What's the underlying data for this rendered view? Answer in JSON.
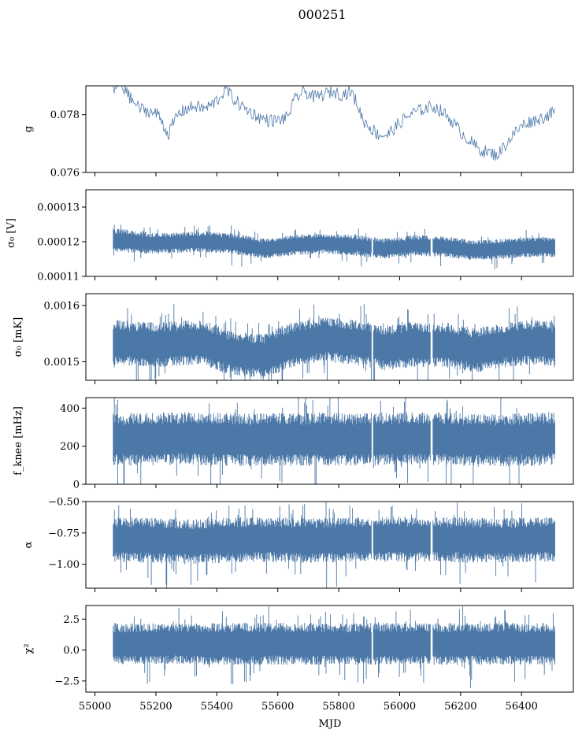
{
  "figure": {
    "suptitle": "000251",
    "xlabel": "MJD",
    "line_color": "#4c78a8",
    "x_ticks": [
      "55000",
      "55200",
      "55400",
      "55600",
      "55800",
      "56000",
      "56200",
      "56400"
    ]
  },
  "chart_data": [
    {
      "type": "line",
      "ylabel": "g",
      "xlim": [
        54970,
        56570
      ],
      "ylim": [
        0.076,
        0.079
      ],
      "y_ticks": [
        "0.076",
        "0.078"
      ],
      "y_tick_values": [
        0.076,
        0.078
      ],
      "series": [
        {
          "x": [
            55060,
            55090,
            55120,
            55150,
            55180,
            55210,
            55240,
            55270,
            55300,
            55330,
            55360,
            55390,
            55410,
            55430,
            55450,
            55480,
            55510,
            55540,
            55570,
            55600,
            55630,
            55660,
            55690,
            55720,
            55750,
            55780,
            55810,
            55840,
            55860,
            55880,
            55900,
            55930,
            55960,
            55990,
            56020,
            56050,
            56080,
            56110,
            56140,
            56170,
            56200,
            56230,
            56260,
            56290,
            56320,
            56350,
            56380,
            56410,
            56440,
            56470,
            56510
          ],
          "y": [
            0.0788,
            0.079,
            0.0785,
            0.0782,
            0.0781,
            0.078,
            0.0773,
            0.078,
            0.0782,
            0.0783,
            0.0782,
            0.0784,
            0.0786,
            0.0789,
            0.0786,
            0.0783,
            0.0781,
            0.0779,
            0.0778,
            0.0778,
            0.0779,
            0.0786,
            0.0788,
            0.0786,
            0.0787,
            0.0788,
            0.0787,
            0.0788,
            0.0784,
            0.0778,
            0.0776,
            0.0773,
            0.0773,
            0.0776,
            0.0779,
            0.0781,
            0.0782,
            0.0783,
            0.0781,
            0.0778,
            0.0774,
            0.0771,
            0.0768,
            0.0767,
            0.0766,
            0.077,
            0.0774,
            0.0777,
            0.0778,
            0.0779,
            0.0781
          ]
        }
      ]
    },
    {
      "type": "line",
      "ylabel": "σ₀ [V]",
      "xlim": [
        54970,
        56570
      ],
      "ylim": [
        0.00011,
        0.000135
      ],
      "y_ticks": [
        "0.00011",
        "0.00012",
        "0.00013"
      ],
      "y_tick_values": [
        0.00011,
        0.00012,
        0.00013
      ],
      "gaps_x": [
        55910,
        56105
      ],
      "envelope": {
        "x": [
          55060,
          55200,
          55350,
          55450,
          55550,
          55650,
          55750,
          55850,
          55950,
          56050,
          56150,
          56250,
          56350,
          56450,
          56510
        ],
        "center": [
          0.0001205,
          0.0001195,
          0.00012,
          0.0001195,
          0.000118,
          0.000119,
          0.0001195,
          0.000119,
          0.000118,
          0.000119,
          0.0001185,
          0.0001175,
          0.000118,
          0.0001185,
          0.0001185
        ],
        "half_width": [
          3.5e-06,
          3e-06,
          3e-06,
          3e-06,
          3e-06,
          3e-06,
          3e-06,
          3e-06,
          3e-06,
          3e-06,
          3e-06,
          3e-06,
          3e-06,
          3e-06,
          3e-06
        ]
      }
    },
    {
      "type": "line",
      "ylabel": "σ₀ [mK]",
      "xlim": [
        54970,
        56570
      ],
      "ylim": [
        0.001467,
        0.001621
      ],
      "y_ticks": [
        "0.0015",
        "0.0016"
      ],
      "y_tick_values": [
        0.0015,
        0.0016
      ],
      "gaps_x": [
        55910,
        56105
      ],
      "envelope": {
        "x": [
          55060,
          55200,
          55350,
          55450,
          55550,
          55650,
          55750,
          55850,
          55950,
          56050,
          56150,
          56250,
          56350,
          56450,
          56510
        ],
        "center": [
          0.001535,
          0.00153,
          0.001535,
          0.001515,
          0.00151,
          0.00153,
          0.00154,
          0.001535,
          0.001525,
          0.00153,
          0.00153,
          0.00152,
          0.00153,
          0.001535,
          0.00153
        ],
        "half_width": [
          4e-05,
          4e-05,
          4e-05,
          4e-05,
          4e-05,
          4e-05,
          4e-05,
          4e-05,
          4e-05,
          4e-05,
          4e-05,
          4e-05,
          4e-05,
          4e-05,
          4e-05
        ]
      }
    },
    {
      "type": "line",
      "ylabel": "f_knee [mHz]",
      "xlim": [
        54970,
        56570
      ],
      "ylim": [
        0,
        455
      ],
      "y_ticks": [
        "0",
        "200",
        "400"
      ],
      "y_tick_values": [
        0,
        200,
        400
      ],
      "gaps_x": [
        55910,
        56105
      ],
      "envelope": {
        "x": [
          55060,
          55300,
          55500,
          55700,
          55900,
          56100,
          56300,
          56510
        ],
        "center": [
          235,
          240,
          235,
          235,
          235,
          240,
          230,
          240
        ],
        "half_width": [
          140,
          140,
          140,
          140,
          140,
          140,
          140,
          140
        ]
      }
    },
    {
      "type": "line",
      "ylabel": "α",
      "xlim": [
        54970,
        56570
      ],
      "ylim": [
        -1.19,
        -0.5
      ],
      "y_ticks": [
        "−0.50",
        "−0.75",
        "−1.00"
      ],
      "y_tick_values": [
        -0.5,
        -0.75,
        -1.0
      ],
      "gaps_x": [
        55910,
        56105
      ],
      "envelope": {
        "x": [
          55060,
          55300,
          55500,
          55700,
          55900,
          56100,
          56300,
          56510
        ],
        "center": [
          -0.8,
          -0.82,
          -0.8,
          -0.81,
          -0.8,
          -0.8,
          -0.81,
          -0.8
        ],
        "half_width": [
          0.18,
          0.18,
          0.18,
          0.18,
          0.18,
          0.18,
          0.18,
          0.18
        ]
      }
    },
    {
      "type": "line",
      "ylabel": "χ²",
      "xlim": [
        54970,
        56570
      ],
      "ylim": [
        -3.4,
        3.6
      ],
      "y_ticks": [
        "2.5",
        "0.0",
        "−2.5"
      ],
      "y_tick_values": [
        2.5,
        0.0,
        -2.5
      ],
      "gaps_x": [
        55910,
        56105
      ],
      "envelope": {
        "x": [
          55060,
          55300,
          55500,
          55700,
          55900,
          56100,
          56300,
          56510
        ],
        "center": [
          0.5,
          0.5,
          0.5,
          0.5,
          0.5,
          0.5,
          0.5,
          0.5
        ],
        "half_width": [
          1.7,
          1.7,
          1.7,
          1.7,
          1.7,
          1.7,
          1.7,
          1.7
        ]
      }
    }
  ]
}
